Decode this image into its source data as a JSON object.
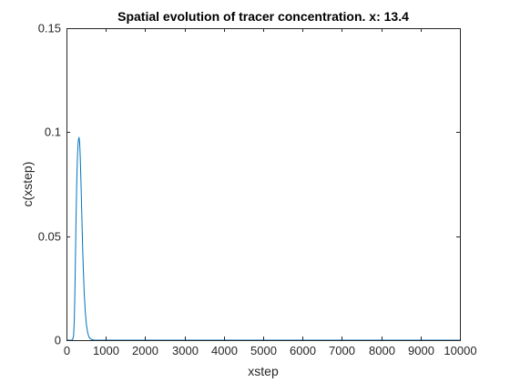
{
  "chart_data": {
    "type": "line",
    "title": "Spatial evolution of tracer concentration. x: 13.4",
    "xlabel": "xstep",
    "ylabel": "c(xstep)",
    "xlim": [
      0,
      10000
    ],
    "ylim": [
      0,
      0.15
    ],
    "xticks": [
      0,
      1000,
      2000,
      3000,
      4000,
      5000,
      6000,
      7000,
      8000,
      9000,
      10000
    ],
    "xtick_labels": [
      "0",
      "1000",
      "2000",
      "3000",
      "4000",
      "5000",
      "6000",
      "7000",
      "8000",
      "9000",
      "10000"
    ],
    "yticks": [
      0,
      0.05,
      0.1,
      0.15
    ],
    "ytick_labels": [
      "0",
      "0.05",
      "0.1",
      "0.15"
    ],
    "grid": false,
    "box": true,
    "series": [
      {
        "color": "#0072bd",
        "x": [
          0,
          150,
          180,
          200,
          220,
          240,
          260,
          280,
          300,
          320,
          335,
          350,
          370,
          390,
          410,
          430,
          450,
          480,
          510,
          540,
          570,
          600,
          650,
          700,
          800,
          1000,
          2000,
          4000,
          6000,
          8000,
          10000
        ],
        "y": [
          0,
          0,
          0.002,
          0.01,
          0.03,
          0.055,
          0.075,
          0.089,
          0.096,
          0.0975,
          0.095,
          0.088,
          0.075,
          0.06,
          0.045,
          0.033,
          0.023,
          0.013,
          0.007,
          0.0035,
          0.0016,
          0.0008,
          0.0002,
          5e-05,
          0,
          0,
          0,
          0,
          0,
          0,
          0
        ]
      }
    ]
  }
}
